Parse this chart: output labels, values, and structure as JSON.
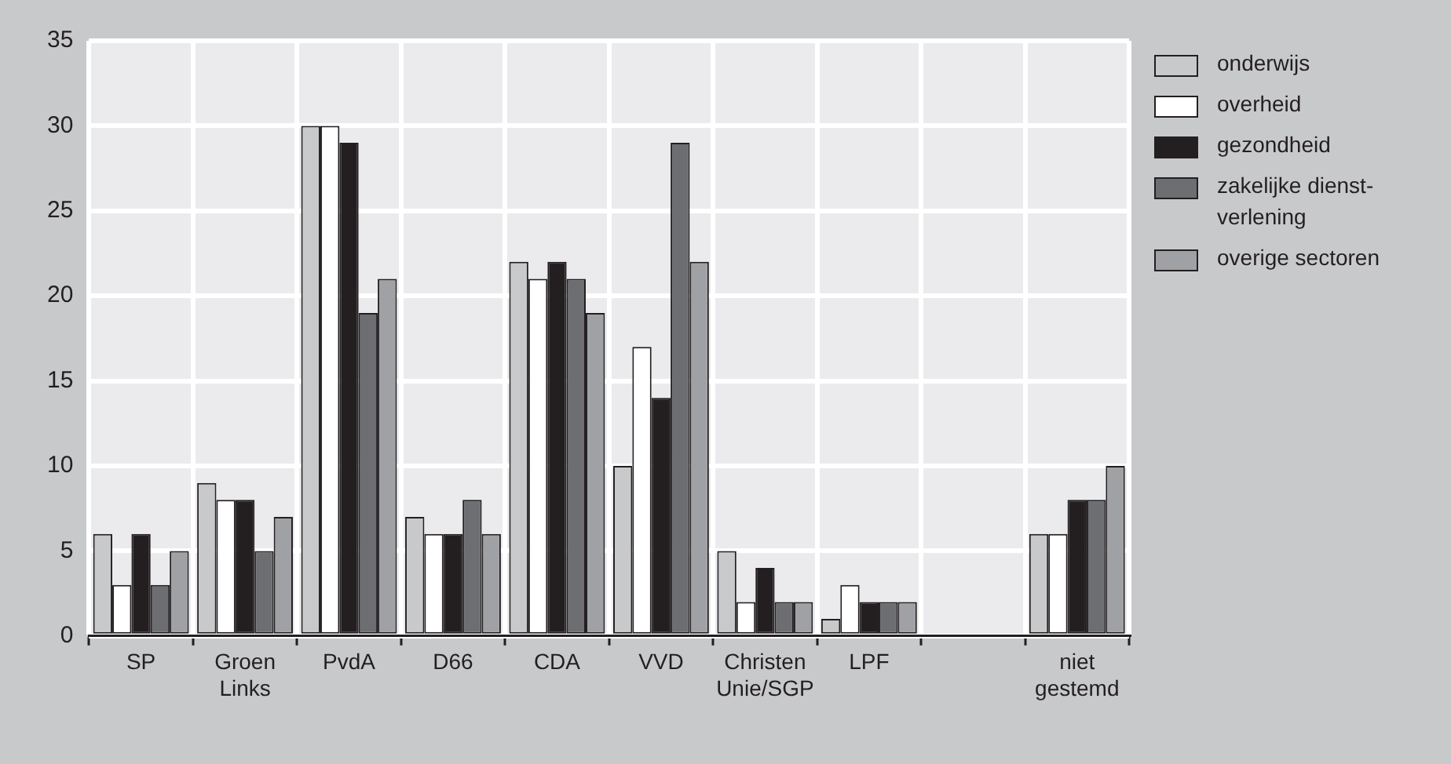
{
  "chart_data": {
    "type": "bar",
    "categories": [
      "SP",
      "Groen Links",
      "PvdA",
      "D66",
      "CDA",
      "VVD",
      "Christen Unie/SGP",
      "LPF",
      null,
      "niet gestemd"
    ],
    "series": [
      {
        "name": "onderwijs",
        "color": "#c8c9cb",
        "values": [
          6,
          9,
          30,
          7,
          22,
          10,
          5,
          1,
          null,
          6
        ]
      },
      {
        "name": "overheid",
        "color": "#ffffff",
        "values": [
          3,
          8,
          30,
          6,
          21,
          17,
          2,
          3,
          null,
          6
        ]
      },
      {
        "name": "gezondheid",
        "color": "#231f20",
        "values": [
          6,
          8,
          29,
          6,
          22,
          14,
          4,
          2,
          null,
          8
        ]
      },
      {
        "name": "zakelijke dienst-verlening",
        "color": "#6d6e71",
        "values": [
          3,
          5,
          19,
          8,
          21,
          29,
          2,
          2,
          null,
          8
        ]
      },
      {
        "name": "overige sectoren",
        "color": "#a0a1a5",
        "values": [
          5,
          7,
          21,
          6,
          19,
          22,
          2,
          2,
          null,
          10
        ]
      }
    ],
    "ylim": [
      0,
      35
    ],
    "yticks": [
      0,
      5,
      10,
      15,
      20,
      25,
      30,
      35
    ],
    "grid": true,
    "legend": "right"
  }
}
